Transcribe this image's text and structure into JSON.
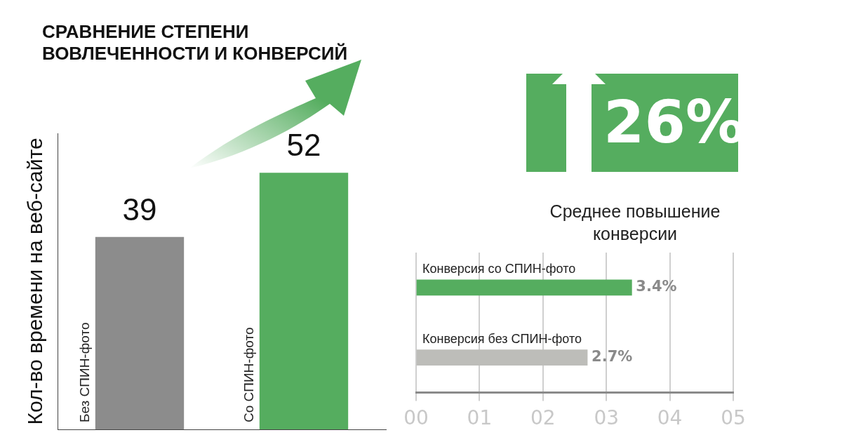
{
  "chart_data": [
    {
      "type": "bar",
      "title": "СРАВНЕНИЕ СТЕПЕНИ ВОВЛЕЧЕННОСТИ И КОНВЕРСИЙ",
      "ylabel": "Кол-во времени на веб-сайте",
      "categories": [
        "Без СПИН-фото",
        "Со СПИН-фото"
      ],
      "values": [
        39,
        52
      ],
      "colors": [
        "#8c8c8c",
        "#55ad5f"
      ],
      "data_labels": true
    },
    {
      "type": "other",
      "annotations": [
        "26%",
        "Среднее повышение конверсии"
      ]
    },
    {
      "type": "bar",
      "orientation": "horizontal",
      "categories": [
        "Конверсия со СПИН-фото",
        "Конверсия без СПИН-фото"
      ],
      "values": [
        3.4,
        2.7
      ],
      "colors": [
        "#55ad5f",
        "#bdbdb9"
      ],
      "value_labels": [
        "3.4%",
        "2.7%"
      ],
      "xlim": [
        0,
        5
      ],
      "xticks": [
        {
          "value": 0,
          "label": "00"
        },
        {
          "value": 1,
          "label": "01"
        },
        {
          "value": 2,
          "label": "02"
        },
        {
          "value": 3,
          "label": "03"
        },
        {
          "value": 4,
          "label": "04"
        },
        {
          "value": 5,
          "label": "05"
        }
      ],
      "grid": "x"
    }
  ]
}
